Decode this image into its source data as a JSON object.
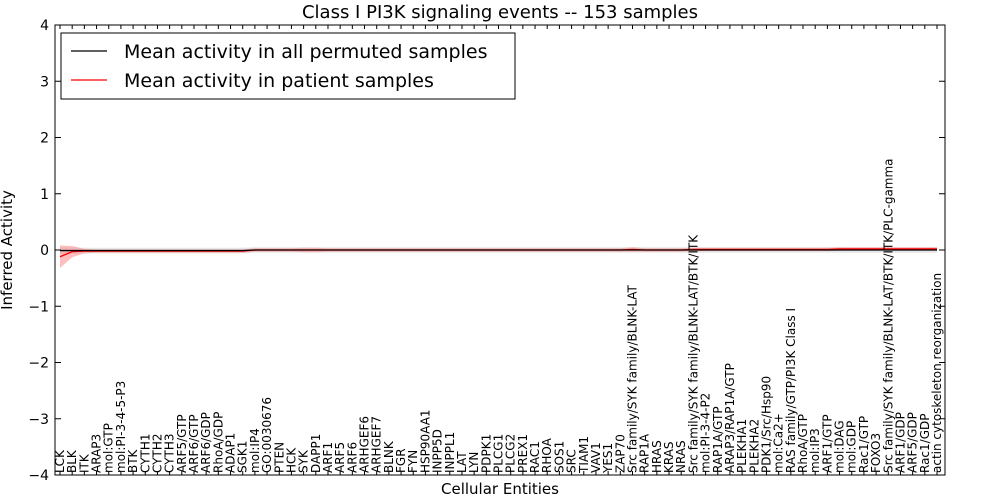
{
  "chart_data": {
    "type": "line",
    "title": "Class I PI3K signaling events -- 153 samples",
    "xlabel": "Cellular Entities",
    "ylabel": "Inferred Activity",
    "ylim": [
      -4,
      4
    ],
    "yticks": [
      -4,
      -3,
      -2,
      -1,
      0,
      1,
      2,
      3,
      4
    ],
    "grid": false,
    "legend_position": "top-left",
    "categories": [
      "LCK",
      "BLK",
      "ITK",
      "ARAP3",
      "mol:GTP",
      "mol:PI-3-4-5-P3",
      "BTK",
      "CYTH1",
      "CYTH2",
      "CYTH3",
      "ARF5/GTP",
      "ARF6/GTP",
      "ARF6/GDP",
      "RhoA/GDP",
      "ADAP1",
      "SGK1",
      "mol:IP4",
      "GO:0030676",
      "PTEN",
      "HCK",
      "SYK",
      "DAPP1",
      "ARF1",
      "ARF5",
      "ARF6",
      "ARHGEF6",
      "ARHGEF7",
      "BLNK",
      "FGR",
      "FYN",
      "HSP90AA1",
      "INPP5D",
      "INPPL1",
      "LAT",
      "LYN",
      "PDPK1",
      "PLCG1",
      "PLCG2",
      "PREX1",
      "RAC1",
      "RHOA",
      "SOS1",
      "SRC",
      "TIAM1",
      "VAV1",
      "YES1",
      "ZAP70",
      "Src family/SYK family/BLNK-LAT",
      "RAP1A",
      "HRAS",
      "KRAS",
      "NRAS",
      "Src family/SYK family/BLNK-LAT/BTK/ITK",
      "mol:PI-3-4-P2",
      "RAP1A/GTP",
      "ARAP3/RAP1A/GTP",
      "PLEKHA1",
      "PLEKHA2",
      "PDK1/Src/Hsp90",
      "mol:Ca2+",
      "RAS family/GTP/PI3K Class I",
      "RhoA/GTP",
      "mol:IP3",
      "ARF1/GTP",
      "mol:DAG",
      "mol:GDP",
      "Rac1/GTP",
      "FOXO3",
      "Src family/SYK family/BLNK-LAT/BTK/ITK/PLC-gamma",
      "ARF1/GDP",
      "ARF5/GDP",
      "Rac1/GDP",
      "actin cytoskeleton reorganization"
    ],
    "series": [
      {
        "name": "Mean activity in all permuted samples",
        "color": "#000000",
        "values": [
          -0.01,
          -0.01,
          -0.01,
          -0.01,
          -0.01,
          -0.01,
          -0.01,
          -0.01,
          -0.01,
          -0.01,
          -0.01,
          -0.01,
          -0.01,
          -0.01,
          -0.01,
          -0.01,
          0.0,
          0.0,
          0.0,
          0.0,
          0.0,
          0.0,
          0.0,
          0.0,
          0.0,
          0.0,
          0.0,
          0.0,
          0.0,
          0.0,
          0.0,
          0.0,
          0.0,
          0.0,
          0.0,
          0.0,
          0.0,
          0.0,
          0.0,
          0.0,
          0.0,
          0.0,
          0.0,
          0.0,
          0.0,
          0.0,
          0.0,
          0.0,
          0.0,
          0.0,
          0.0,
          0.0,
          0.0,
          0.0,
          0.0,
          0.0,
          0.0,
          0.0,
          0.0,
          0.0,
          0.0,
          0.0,
          0.0,
          0.0,
          0.0,
          0.0,
          0.0,
          0.0,
          0.0,
          0.0,
          0.0,
          0.0,
          0.0
        ],
        "band": [
          0.06,
          0.06,
          0.05,
          0.05,
          0.05,
          0.05,
          0.05,
          0.05,
          0.05,
          0.05,
          0.05,
          0.05,
          0.05,
          0.05,
          0.05,
          0.05,
          0.05,
          0.05,
          0.05,
          0.05,
          0.05,
          0.05,
          0.05,
          0.05,
          0.05,
          0.05,
          0.05,
          0.05,
          0.05,
          0.05,
          0.05,
          0.05,
          0.05,
          0.05,
          0.05,
          0.05,
          0.05,
          0.05,
          0.05,
          0.05,
          0.05,
          0.05,
          0.05,
          0.05,
          0.05,
          0.05,
          0.05,
          0.05,
          0.05,
          0.05,
          0.05,
          0.05,
          0.05,
          0.05,
          0.05,
          0.05,
          0.05,
          0.05,
          0.05,
          0.05,
          0.05,
          0.05,
          0.05,
          0.05,
          0.05,
          0.05,
          0.05,
          0.05,
          0.05,
          0.05,
          0.05,
          0.05,
          0.05
        ]
      },
      {
        "name": "Mean activity in patient samples",
        "color": "#ff0000",
        "values": [
          -0.12,
          -0.03,
          -0.02,
          -0.02,
          -0.02,
          -0.02,
          -0.02,
          -0.02,
          -0.02,
          -0.02,
          -0.02,
          -0.02,
          -0.02,
          -0.02,
          -0.02,
          -0.02,
          0.0,
          0.0,
          0.0,
          0.0,
          0.0,
          0.0,
          0.0,
          0.0,
          0.0,
          0.0,
          0.0,
          0.0,
          0.0,
          0.0,
          0.0,
          0.0,
          0.0,
          0.0,
          0.0,
          0.0,
          0.0,
          0.0,
          0.0,
          0.0,
          0.0,
          0.0,
          0.0,
          0.0,
          0.0,
          0.0,
          0.0,
          0.01,
          0.0,
          0.0,
          0.0,
          0.0,
          0.01,
          0.01,
          0.01,
          0.01,
          0.01,
          0.01,
          0.01,
          0.01,
          0.01,
          0.01,
          0.01,
          0.01,
          0.02,
          0.02,
          0.02,
          0.02,
          0.02,
          0.02,
          0.02,
          0.02,
          0.02
        ],
        "band": [
          0.2,
          0.1,
          0.04,
          0.03,
          0.03,
          0.03,
          0.03,
          0.03,
          0.03,
          0.03,
          0.03,
          0.03,
          0.03,
          0.03,
          0.03,
          0.03,
          0.03,
          0.03,
          0.03,
          0.03,
          0.04,
          0.04,
          0.03,
          0.03,
          0.03,
          0.03,
          0.03,
          0.03,
          0.03,
          0.03,
          0.03,
          0.03,
          0.03,
          0.03,
          0.03,
          0.03,
          0.03,
          0.03,
          0.03,
          0.03,
          0.03,
          0.03,
          0.03,
          0.03,
          0.03,
          0.03,
          0.03,
          0.04,
          0.03,
          0.03,
          0.03,
          0.03,
          0.03,
          0.03,
          0.03,
          0.03,
          0.03,
          0.03,
          0.03,
          0.03,
          0.03,
          0.03,
          0.03,
          0.03,
          0.03,
          0.03,
          0.03,
          0.03,
          0.03,
          0.03,
          0.03,
          0.03,
          0.03
        ]
      }
    ]
  }
}
